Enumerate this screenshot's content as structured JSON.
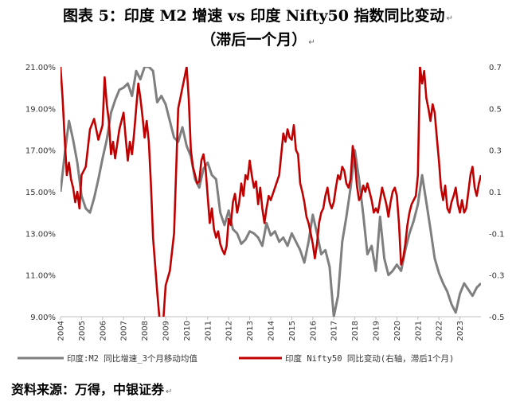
{
  "title_line1": "图表 5：印度 M2 增速 vs 印度 Nifty50 指数同比变动",
  "title_line2": "（滞后一个月）",
  "source": "资料来源：万得，中银证券",
  "chart_data": {
    "type": "line",
    "x_ticks": [
      "2004",
      "2005",
      "2006",
      "2007",
      "2008",
      "2009",
      "2010",
      "2011",
      "2012",
      "2013",
      "2014",
      "2015",
      "2016",
      "2017",
      "2018",
      "2019",
      "2020",
      "2021",
      "2022",
      "2023"
    ],
    "x_range": [
      2004.0,
      2024.0
    ],
    "left_axis": {
      "ylim": [
        9.0,
        21.0
      ],
      "ticks": [
        "9.00%",
        "11.00%",
        "13.00%",
        "15.00%",
        "17.00%",
        "19.00%",
        "21.00%"
      ]
    },
    "right_axis": {
      "ylim": [
        -0.5,
        0.7
      ],
      "ticks": [
        "-0.5",
        "-0.3",
        "-0.1",
        "0.1",
        "0.3",
        "0.5",
        "0.7"
      ]
    },
    "series": [
      {
        "name": "印度:M2 同比增速_3个月移动均值",
        "axis": "left",
        "color": "#7f7f7f",
        "points": [
          [
            2004.0,
            15.0
          ],
          [
            2004.2,
            16.8
          ],
          [
            2004.4,
            18.4
          ],
          [
            2004.6,
            17.5
          ],
          [
            2004.8,
            16.4
          ],
          [
            2005.0,
            14.8
          ],
          [
            2005.2,
            14.2
          ],
          [
            2005.4,
            14.0
          ],
          [
            2005.6,
            14.7
          ],
          [
            2005.8,
            15.6
          ],
          [
            2006.0,
            16.6
          ],
          [
            2006.2,
            17.5
          ],
          [
            2006.4,
            18.8
          ],
          [
            2006.6,
            19.4
          ],
          [
            2006.8,
            19.9
          ],
          [
            2007.0,
            20.0
          ],
          [
            2007.2,
            20.2
          ],
          [
            2007.4,
            19.6
          ],
          [
            2007.6,
            20.8
          ],
          [
            2007.8,
            20.4
          ],
          [
            2008.0,
            21.0
          ],
          [
            2008.2,
            21.0
          ],
          [
            2008.4,
            20.8
          ],
          [
            2008.6,
            19.3
          ],
          [
            2008.8,
            19.6
          ],
          [
            2009.0,
            19.2
          ],
          [
            2009.2,
            18.4
          ],
          [
            2009.4,
            17.6
          ],
          [
            2009.6,
            17.4
          ],
          [
            2009.8,
            18.1
          ],
          [
            2010.0,
            17.2
          ],
          [
            2010.2,
            16.7
          ],
          [
            2010.4,
            15.6
          ],
          [
            2010.6,
            15.2
          ],
          [
            2010.8,
            16.1
          ],
          [
            2011.0,
            16.4
          ],
          [
            2011.2,
            15.8
          ],
          [
            2011.4,
            15.6
          ],
          [
            2011.6,
            14.0
          ],
          [
            2011.8,
            13.4
          ],
          [
            2012.0,
            14.1
          ],
          [
            2012.2,
            13.2
          ],
          [
            2012.4,
            13.0
          ],
          [
            2012.6,
            12.5
          ],
          [
            2012.8,
            12.7
          ],
          [
            2013.0,
            13.1
          ],
          [
            2013.2,
            13.0
          ],
          [
            2013.4,
            12.8
          ],
          [
            2013.6,
            12.4
          ],
          [
            2013.8,
            13.5
          ],
          [
            2014.0,
            12.9
          ],
          [
            2014.2,
            13.1
          ],
          [
            2014.4,
            12.6
          ],
          [
            2014.6,
            12.8
          ],
          [
            2014.8,
            12.4
          ],
          [
            2015.0,
            13.0
          ],
          [
            2015.2,
            12.6
          ],
          [
            2015.4,
            12.2
          ],
          [
            2015.6,
            11.6
          ],
          [
            2015.8,
            12.6
          ],
          [
            2016.0,
            13.9
          ],
          [
            2016.2,
            13.0
          ],
          [
            2016.4,
            12.0
          ],
          [
            2016.6,
            12.2
          ],
          [
            2016.8,
            11.4
          ],
          [
            2017.0,
            9.0
          ],
          [
            2017.2,
            10.0
          ],
          [
            2017.4,
            12.6
          ],
          [
            2017.6,
            13.8
          ],
          [
            2017.8,
            15.2
          ],
          [
            2018.0,
            17.0
          ],
          [
            2018.2,
            15.6
          ],
          [
            2018.4,
            13.9
          ],
          [
            2018.6,
            12.0
          ],
          [
            2018.8,
            12.4
          ],
          [
            2019.0,
            11.2
          ],
          [
            2019.2,
            13.8
          ],
          [
            2019.4,
            11.8
          ],
          [
            2019.6,
            11.0
          ],
          [
            2019.8,
            11.2
          ],
          [
            2020.0,
            11.5
          ],
          [
            2020.2,
            11.2
          ],
          [
            2020.4,
            12.2
          ],
          [
            2020.6,
            13.0
          ],
          [
            2020.8,
            13.6
          ],
          [
            2021.0,
            14.4
          ],
          [
            2021.2,
            15.8
          ],
          [
            2021.4,
            14.5
          ],
          [
            2021.6,
            13.2
          ],
          [
            2021.8,
            11.8
          ],
          [
            2022.0,
            11.1
          ],
          [
            2022.2,
            10.6
          ],
          [
            2022.4,
            10.2
          ],
          [
            2022.6,
            9.6
          ],
          [
            2022.8,
            9.2
          ],
          [
            2023.0,
            10.1
          ],
          [
            2023.2,
            10.6
          ],
          [
            2023.4,
            10.3
          ],
          [
            2023.6,
            10.0
          ],
          [
            2023.8,
            10.4
          ],
          [
            2024.0,
            10.6
          ]
        ]
      },
      {
        "name": "印度 Nifty50 同比变动(右轴，滞后1个月)",
        "axis": "right",
        "color": "#c00000",
        "points": [
          [
            2004.0,
            0.7
          ],
          [
            2004.1,
            0.55
          ],
          [
            2004.2,
            0.35
          ],
          [
            2004.3,
            0.18
          ],
          [
            2004.4,
            0.24
          ],
          [
            2004.5,
            0.16
          ],
          [
            2004.6,
            0.12
          ],
          [
            2004.7,
            0.05
          ],
          [
            2004.8,
            0.1
          ],
          [
            2004.9,
            0.02
          ],
          [
            2005.0,
            0.18
          ],
          [
            2005.2,
            0.22
          ],
          [
            2005.4,
            0.4
          ],
          [
            2005.6,
            0.45
          ],
          [
            2005.8,
            0.35
          ],
          [
            2006.0,
            0.42
          ],
          [
            2006.1,
            0.65
          ],
          [
            2006.2,
            0.52
          ],
          [
            2006.3,
            0.44
          ],
          [
            2006.4,
            0.28
          ],
          [
            2006.5,
            0.34
          ],
          [
            2006.6,
            0.26
          ],
          [
            2006.8,
            0.4
          ],
          [
            2007.0,
            0.48
          ],
          [
            2007.1,
            0.36
          ],
          [
            2007.2,
            0.25
          ],
          [
            2007.3,
            0.34
          ],
          [
            2007.4,
            0.28
          ],
          [
            2007.5,
            0.38
          ],
          [
            2007.6,
            0.5
          ],
          [
            2007.7,
            0.62
          ],
          [
            2007.8,
            0.55
          ],
          [
            2007.9,
            0.46
          ],
          [
            2008.0,
            0.36
          ],
          [
            2008.1,
            0.44
          ],
          [
            2008.2,
            0.34
          ],
          [
            2008.3,
            0.14
          ],
          [
            2008.4,
            -0.12
          ],
          [
            2008.5,
            -0.25
          ],
          [
            2008.6,
            -0.38
          ],
          [
            2008.7,
            -0.5
          ],
          [
            2008.8,
            -0.52
          ],
          [
            2008.9,
            -0.5
          ],
          [
            2009.0,
            -0.35
          ],
          [
            2009.2,
            -0.28
          ],
          [
            2009.4,
            -0.1
          ],
          [
            2009.5,
            0.2
          ],
          [
            2009.6,
            0.5
          ],
          [
            2009.7,
            0.55
          ],
          [
            2009.8,
            0.6
          ],
          [
            2009.9,
            0.65
          ],
          [
            2010.0,
            0.7
          ],
          [
            2010.1,
            0.55
          ],
          [
            2010.2,
            0.3
          ],
          [
            2010.3,
            0.22
          ],
          [
            2010.4,
            0.18
          ],
          [
            2010.5,
            0.14
          ],
          [
            2010.6,
            0.15
          ],
          [
            2010.7,
            0.25
          ],
          [
            2010.8,
            0.28
          ],
          [
            2010.9,
            0.21
          ],
          [
            2011.0,
            0.08
          ],
          [
            2011.1,
            -0.05
          ],
          [
            2011.2,
            0.02
          ],
          [
            2011.3,
            -0.08
          ],
          [
            2011.4,
            -0.12
          ],
          [
            2011.5,
            -0.09
          ],
          [
            2011.6,
            -0.15
          ],
          [
            2011.7,
            -0.18
          ],
          [
            2011.8,
            -0.2
          ],
          [
            2011.9,
            -0.16
          ],
          [
            2012.0,
            -0.03
          ],
          [
            2012.1,
            -0.06
          ],
          [
            2012.2,
            0.05
          ],
          [
            2012.3,
            0.09
          ],
          [
            2012.4,
            0.0
          ],
          [
            2012.5,
            0.05
          ],
          [
            2012.6,
            0.14
          ],
          [
            2012.7,
            0.08
          ],
          [
            2012.8,
            0.18
          ],
          [
            2012.9,
            0.16
          ],
          [
            2013.0,
            0.25
          ],
          [
            2013.1,
            0.18
          ],
          [
            2013.2,
            0.12
          ],
          [
            2013.3,
            0.15
          ],
          [
            2013.4,
            0.04
          ],
          [
            2013.5,
            0.12
          ],
          [
            2013.6,
            0.02
          ],
          [
            2013.7,
            -0.05
          ],
          [
            2013.8,
            0.02
          ],
          [
            2013.9,
            0.08
          ],
          [
            2014.0,
            0.06
          ],
          [
            2014.2,
            0.12
          ],
          [
            2014.4,
            0.18
          ],
          [
            2014.5,
            0.28
          ],
          [
            2014.6,
            0.38
          ],
          [
            2014.7,
            0.34
          ],
          [
            2014.8,
            0.4
          ],
          [
            2014.9,
            0.36
          ],
          [
            2015.0,
            0.35
          ],
          [
            2015.1,
            0.42
          ],
          [
            2015.2,
            0.3
          ],
          [
            2015.3,
            0.28
          ],
          [
            2015.4,
            0.14
          ],
          [
            2015.5,
            0.1
          ],
          [
            2015.6,
            0.05
          ],
          [
            2015.7,
            -0.02
          ],
          [
            2015.8,
            -0.05
          ],
          [
            2015.9,
            -0.1
          ],
          [
            2016.0,
            -0.15
          ],
          [
            2016.1,
            -0.22
          ],
          [
            2016.2,
            -0.15
          ],
          [
            2016.3,
            -0.05
          ],
          [
            2016.4,
            0.0
          ],
          [
            2016.5,
            0.02
          ],
          [
            2016.6,
            0.08
          ],
          [
            2016.7,
            0.12
          ],
          [
            2016.8,
            0.05
          ],
          [
            2016.9,
            0.02
          ],
          [
            2017.0,
            0.05
          ],
          [
            2017.1,
            0.12
          ],
          [
            2017.2,
            0.18
          ],
          [
            2017.3,
            0.16
          ],
          [
            2017.4,
            0.22
          ],
          [
            2017.5,
            0.2
          ],
          [
            2017.6,
            0.14
          ],
          [
            2017.7,
            0.12
          ],
          [
            2017.8,
            0.16
          ],
          [
            2017.9,
            0.32
          ],
          [
            2018.0,
            0.25
          ],
          [
            2018.1,
            0.13
          ],
          [
            2018.2,
            0.06
          ],
          [
            2018.3,
            0.08
          ],
          [
            2018.4,
            0.13
          ],
          [
            2018.5,
            0.1
          ],
          [
            2018.6,
            0.14
          ],
          [
            2018.7,
            0.1
          ],
          [
            2018.8,
            0.06
          ],
          [
            2018.9,
            0.0
          ],
          [
            2019.0,
            0.02
          ],
          [
            2019.1,
            0.0
          ],
          [
            2019.2,
            0.06
          ],
          [
            2019.3,
            0.12
          ],
          [
            2019.4,
            0.08
          ],
          [
            2019.5,
            0.04
          ],
          [
            2019.6,
            -0.02
          ],
          [
            2019.7,
            0.05
          ],
          [
            2019.8,
            0.1
          ],
          [
            2019.9,
            0.12
          ],
          [
            2020.0,
            0.08
          ],
          [
            2020.1,
            -0.05
          ],
          [
            2020.2,
            -0.25
          ],
          [
            2020.3,
            -0.22
          ],
          [
            2020.4,
            -0.15
          ],
          [
            2020.5,
            -0.06
          ],
          [
            2020.6,
            0.0
          ],
          [
            2020.7,
            0.04
          ],
          [
            2020.8,
            0.06
          ],
          [
            2020.9,
            0.08
          ],
          [
            2021.0,
            0.18
          ],
          [
            2021.1,
            0.7
          ],
          [
            2021.2,
            0.62
          ],
          [
            2021.3,
            0.68
          ],
          [
            2021.4,
            0.55
          ],
          [
            2021.5,
            0.5
          ],
          [
            2021.6,
            0.44
          ],
          [
            2021.7,
            0.52
          ],
          [
            2021.8,
            0.48
          ],
          [
            2021.9,
            0.36
          ],
          [
            2022.0,
            0.25
          ],
          [
            2022.1,
            0.12
          ],
          [
            2022.2,
            0.06
          ],
          [
            2022.3,
            0.13
          ],
          [
            2022.4,
            0.02
          ],
          [
            2022.5,
            0.0
          ],
          [
            2022.6,
            0.05
          ],
          [
            2022.7,
            0.08
          ],
          [
            2022.8,
            0.12
          ],
          [
            2022.9,
            0.04
          ],
          [
            2023.0,
            0.0
          ],
          [
            2023.1,
            0.06
          ],
          [
            2023.2,
            0.0
          ],
          [
            2023.3,
            0.02
          ],
          [
            2023.4,
            0.1
          ],
          [
            2023.5,
            0.18
          ],
          [
            2023.6,
            0.22
          ],
          [
            2023.7,
            0.12
          ],
          [
            2023.8,
            0.08
          ],
          [
            2023.9,
            0.14
          ],
          [
            2024.0,
            0.18
          ]
        ]
      }
    ]
  }
}
